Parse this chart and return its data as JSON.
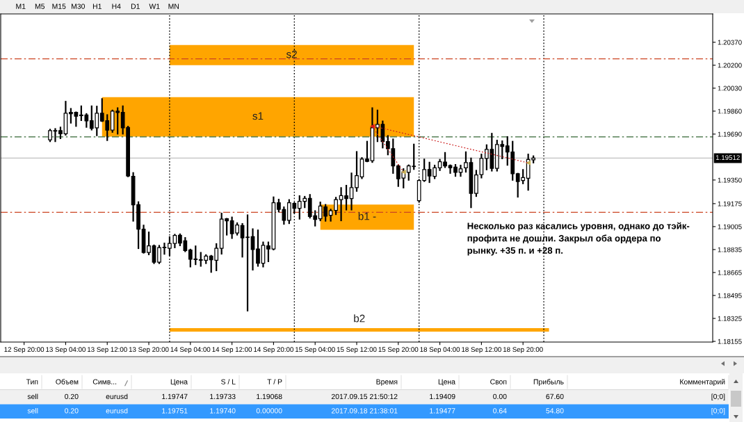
{
  "chart_data": [
    {
      "type": "other",
      "annotations": [
        "M1",
        "M5",
        "M15",
        "M30",
        "H1",
        "H4",
        "D1",
        "W1",
        "MN"
      ]
    },
    {
      "type": "candlestick",
      "categories": [
        null,
        null,
        null,
        null,
        "12 Sep 20:00",
        null,
        null,
        null,
        null,
        null,
        null,
        null,
        "13 Sep 04:00",
        null,
        null,
        null,
        null,
        null,
        null,
        null,
        "13 Sep 12:00",
        null,
        null,
        null,
        null,
        null,
        null,
        null,
        "13 Sep 20:00",
        null,
        null,
        null,
        null,
        null,
        null,
        null,
        "14 Sep 04:00",
        null,
        null,
        null,
        null,
        null,
        null,
        null,
        "14 Sep 12:00",
        null,
        null,
        null,
        null,
        null,
        null,
        null,
        "14 Sep 20:00",
        null,
        null,
        null,
        null,
        null,
        null,
        null,
        "15 Sep 04:00",
        null,
        null,
        null,
        null,
        null,
        null,
        null,
        "15 Sep 12:00",
        null,
        null,
        null,
        null,
        null,
        null,
        null,
        "15 Sep 20:00",
        null,
        null,
        null,
        null,
        null,
        null,
        null,
        "18 Sep 04:00",
        null,
        null,
        null,
        null,
        null,
        null,
        null,
        "18 Sep 12:00",
        null,
        null,
        null,
        null,
        null,
        null,
        null,
        "18 Sep 20:00",
        null,
        null,
        null,
        null,
        null,
        null,
        null,
        null,
        null,
        null,
        null,
        null,
        null,
        null,
        null,
        null,
        null,
        null,
        null,
        null,
        null,
        null,
        null,
        null,
        null,
        null,
        null,
        null,
        null,
        null,
        null,
        null,
        null,
        null,
        null,
        null
      ],
      "ohlc": [
        null,
        null,
        null,
        null,
        null,
        null,
        null,
        null,
        null,
        [
          1.19647,
          1.19723,
          1.19637,
          1.19716
        ],
        [
          1.19712,
          1.19728,
          1.19637,
          1.19716
        ],
        [
          1.19716,
          1.19739,
          1.19659,
          1.19693
        ],
        [
          1.19692,
          1.1993,
          1.19685,
          1.19844
        ],
        [
          1.19851,
          1.19877,
          1.19774,
          1.19841
        ],
        [
          1.19851,
          1.19851,
          1.1975,
          1.19822
        ],
        [
          1.19831,
          1.19896,
          1.19793,
          1.19827
        ],
        [
          1.19832,
          1.19839,
          1.19743,
          1.19788
        ],
        [
          1.19789,
          1.19896,
          1.19723,
          1.19733
        ],
        [
          1.19736,
          1.19894,
          1.19681,
          1.19844
        ],
        [
          1.19844,
          1.1995,
          1.19786,
          1.19786
        ],
        [
          1.19789,
          1.19831,
          1.19645,
          1.19719
        ],
        [
          1.19719,
          1.19865,
          1.19706,
          1.1986
        ],
        [
          1.1986,
          1.19882,
          1.19693,
          1.19849
        ],
        [
          1.19851,
          1.19896,
          1.19693,
          1.19736
        ],
        [
          1.19739,
          1.19745,
          1.19377,
          1.1938
        ],
        [
          1.19377,
          1.19402,
          1.19048,
          1.19166
        ],
        [
          1.19167,
          1.19186,
          1.18845,
          1.18986
        ],
        [
          1.18986,
          1.19013,
          1.18811,
          1.18814
        ],
        [
          1.18814,
          1.18962,
          1.18799,
          1.18863
        ],
        [
          1.18863,
          1.18866,
          1.18734,
          1.18742
        ],
        [
          1.18742,
          1.18863,
          1.18734,
          1.18849
        ],
        [
          1.18849,
          1.1888,
          1.18803,
          1.18852
        ],
        [
          1.18845,
          1.18927,
          1.18794,
          1.1888
        ],
        [
          1.1888,
          1.18945,
          1.18851,
          1.1894
        ],
        [
          1.18941,
          1.18948,
          1.18866,
          1.18883
        ],
        [
          1.189,
          1.18921,
          1.18822,
          1.18828
        ],
        [
          1.18831,
          1.18835,
          1.18709,
          1.18763
        ],
        [
          1.18765,
          1.18859,
          1.18726,
          1.18761
        ],
        [
          1.1876,
          1.18811,
          1.18714,
          1.18756
        ],
        [
          1.18755,
          1.18794,
          1.18734,
          1.18786
        ],
        [
          1.18786,
          1.18789,
          1.18669,
          1.1876
        ],
        [
          1.18755,
          1.18876,
          1.18681,
          1.18845
        ],
        [
          1.18845,
          1.19102,
          1.18804,
          1.1906
        ],
        [
          1.19063,
          1.19063,
          1.18945,
          1.19048
        ],
        [
          1.19048,
          1.19073,
          1.1892,
          1.18953
        ],
        [
          1.18957,
          1.1903,
          1.18945,
          1.19017
        ],
        [
          1.19013,
          1.19025,
          1.18782,
          1.18922
        ],
        [
          1.18927,
          1.19089,
          1.18383,
          1.18925
        ],
        [
          1.18931,
          1.18986,
          1.18686,
          1.18835
        ],
        [
          1.18839,
          1.18977,
          1.18714,
          1.18734
        ],
        [
          1.18734,
          1.18888,
          1.18709,
          1.18866
        ],
        [
          1.18863,
          1.18888,
          1.18748,
          1.18839
        ],
        [
          1.18839,
          1.19222,
          1.18835,
          1.19181
        ],
        [
          1.19181,
          1.19205,
          1.19116,
          1.19133
        ],
        [
          1.19131,
          1.19148,
          1.19025,
          1.19051
        ],
        [
          1.19051,
          1.19202,
          1.1903,
          1.19181
        ],
        [
          1.19176,
          1.19179,
          1.19107,
          1.1914
        ],
        [
          1.1914,
          1.19231,
          1.19063,
          1.19192
        ],
        [
          1.19192,
          1.19226,
          1.19148,
          1.19214
        ],
        [
          1.19214,
          1.1924,
          1.19071,
          1.1908
        ],
        [
          1.19085,
          1.1912,
          1.19012,
          1.19058
        ],
        [
          1.19063,
          1.19184,
          1.19051,
          1.19157
        ],
        [
          1.19151,
          1.19166,
          1.19048,
          1.19082
        ],
        [
          1.19089,
          1.19131,
          1.19048,
          1.19123
        ],
        [
          1.19125,
          1.19219,
          1.19097,
          1.19205
        ],
        [
          1.19205,
          1.19291,
          1.19051,
          1.19234
        ],
        [
          1.19233,
          1.19308,
          1.19131,
          1.19212
        ],
        [
          1.19212,
          1.19399,
          1.19131,
          1.19294
        ],
        [
          1.19294,
          1.19558,
          1.19269,
          1.19383
        ],
        [
          1.19373,
          1.19513,
          1.19363,
          1.19505
        ],
        [
          1.19505,
          1.19634,
          1.19488,
          1.19488
        ],
        [
          1.19493,
          1.19882,
          1.19483,
          1.19736
        ],
        [
          1.19736,
          1.19865,
          1.19637,
          1.19762
        ],
        [
          1.19762,
          1.19784,
          1.1959,
          1.19634
        ],
        [
          1.19634,
          1.19676,
          1.19539,
          1.19582
        ],
        [
          1.19582,
          1.19651,
          1.19402,
          1.19454
        ],
        [
          1.19454,
          1.19459,
          1.19305,
          1.19359
        ],
        [
          1.19364,
          1.19431,
          1.19294,
          1.19411
        ],
        [
          1.19407,
          1.19459,
          1.19351,
          1.19454
        ],
        [
          1.19452,
          1.19613,
          1.19431,
          1.1945
        ],
        [
          1.19197,
          1.19351,
          1.19188,
          1.19346
        ],
        [
          1.19346,
          1.19502,
          1.19342,
          1.19428
        ],
        [
          1.19428,
          1.19479,
          1.19334,
          1.1938
        ],
        [
          1.19377,
          1.19457,
          1.19363,
          1.1944
        ],
        [
          1.1944,
          1.195,
          1.19423,
          1.19485
        ],
        [
          1.19483,
          1.19551,
          1.19445,
          1.19454
        ],
        [
          1.19457,
          1.19459,
          1.19402,
          1.1944
        ],
        [
          1.19445,
          1.19462,
          1.1938,
          1.19407
        ],
        [
          1.19407,
          1.19457,
          1.1938,
          1.19433
        ],
        [
          1.1944,
          1.19556,
          1.19411,
          1.19479
        ],
        [
          1.19479,
          1.1951,
          1.19148,
          1.19251
        ],
        [
          1.19251,
          1.19419,
          1.19231,
          1.19388
        ],
        [
          1.1939,
          1.19539,
          1.19368,
          1.1951
        ],
        [
          1.1951,
          1.19608,
          1.19428,
          1.19577
        ],
        [
          1.19577,
          1.19693,
          1.19419,
          1.19436
        ],
        [
          1.19436,
          1.19642,
          1.19419,
          1.19613
        ],
        [
          1.19613,
          1.19637,
          1.1951,
          1.19599
        ],
        [
          1.19603,
          1.19668,
          1.19462,
          1.19557
        ],
        [
          1.19557,
          1.19634,
          1.19351,
          1.19397
        ],
        [
          1.19397,
          1.19397,
          1.19226,
          1.19339
        ],
        [
          1.19346,
          1.19425,
          1.19325,
          1.19368
        ],
        [
          1.19363,
          1.19539,
          1.19277,
          1.19502
        ],
        [
          1.195,
          1.19526,
          1.19479,
          1.19512
        ],
        null,
        null,
        null,
        null,
        null,
        null,
        null,
        null,
        null,
        null,
        null,
        null,
        null,
        null,
        null,
        null,
        null,
        null,
        null,
        null,
        null,
        null,
        null,
        null,
        null,
        null,
        null,
        null,
        null,
        null,
        null,
        null,
        null,
        null
      ],
      "ylim": [
        1.1815,
        1.2058
      ],
      "yticks": [
        {
          "value": 1.2037,
          "label": "1.20370"
        },
        {
          "value": 1.202,
          "label": "1.20200"
        },
        {
          "value": 1.2003,
          "label": "1.20030"
        },
        {
          "value": 1.1986,
          "label": "1.19860"
        },
        {
          "value": 1.1969,
          "label": "1.19690"
        },
        {
          "value": 1.1935,
          "label": "1.19350"
        },
        1.19175,
        1.19005,
        1.18835,
        1.18665,
        1.18495,
        1.18325,
        1.18155
      ],
      "series": [
        {
          "type": "line",
          "color": "#cc2020",
          "line_style": "dotted",
          "values": [
            null,
            null,
            null,
            null,
            null,
            null,
            null,
            null,
            null,
            null,
            null,
            null,
            null,
            null,
            null,
            null,
            null,
            null,
            null,
            null,
            null,
            null,
            null,
            null,
            null,
            null,
            null,
            null,
            null,
            null,
            null,
            null,
            null,
            null,
            null,
            null,
            null,
            null,
            null,
            null,
            null,
            null,
            null,
            null,
            null,
            null,
            null,
            null,
            null,
            null,
            null,
            null,
            null,
            null,
            null,
            null,
            null,
            null,
            null,
            null,
            null,
            null,
            null,
            null,
            null,
            null,
            null,
            null,
            null,
            null,
            null,
            1.19747,
            null,
            null,
            null,
            null,
            null,
            1.19409,
            null,
            null,
            null,
            null,
            null,
            null,
            null,
            null,
            null,
            null,
            null,
            null,
            null,
            null,
            null,
            null,
            null,
            null,
            null,
            null,
            null,
            null,
            null,
            null,
            null,
            null,
            null,
            null,
            null,
            null,
            null,
            null,
            null,
            null,
            null,
            null,
            null,
            null,
            null,
            null,
            null,
            null,
            null,
            null,
            null,
            null,
            null,
            null,
            null,
            null,
            null,
            null,
            null,
            null,
            null,
            null,
            null,
            null,
            null
          ]
        },
        {
          "type": "line",
          "color": "#cc2020",
          "line_style": "dotted",
          "values": [
            null,
            null,
            null,
            null,
            null,
            null,
            null,
            null,
            null,
            null,
            null,
            null,
            null,
            null,
            null,
            null,
            null,
            null,
            null,
            null,
            null,
            null,
            null,
            null,
            null,
            null,
            null,
            null,
            null,
            null,
            null,
            null,
            null,
            null,
            null,
            null,
            null,
            null,
            null,
            null,
            null,
            null,
            null,
            null,
            null,
            null,
            null,
            null,
            null,
            null,
            null,
            null,
            null,
            null,
            null,
            null,
            null,
            null,
            null,
            null,
            null,
            null,
            null,
            null,
            null,
            null,
            null,
            null,
            null,
            null,
            null,
            1.19751,
            null,
            null,
            null,
            null,
            null,
            null,
            null,
            null,
            null,
            null,
            null,
            null,
            null,
            null,
            null,
            null,
            null,
            null,
            null,
            null,
            null,
            null,
            null,
            null,
            null,
            null,
            null,
            null,
            null,
            1.19477,
            null,
            null,
            null,
            null,
            null,
            null,
            null,
            null,
            null,
            null,
            null,
            null,
            null,
            null,
            null,
            null,
            null,
            null,
            null,
            null,
            null,
            null,
            null,
            null,
            null,
            null,
            null,
            null,
            null,
            null,
            null,
            null,
            null,
            null,
            null
          ]
        },
        {
          "type": "scatter",
          "color": "#e01818",
          "marker": "triangle",
          "values": [
            null,
            null,
            null,
            null,
            null,
            null,
            null,
            null,
            null,
            null,
            null,
            null,
            null,
            null,
            null,
            null,
            null,
            null,
            null,
            null,
            null,
            null,
            null,
            null,
            null,
            null,
            null,
            null,
            null,
            null,
            null,
            null,
            null,
            null,
            null,
            null,
            null,
            null,
            null,
            null,
            null,
            null,
            null,
            null,
            null,
            null,
            null,
            null,
            null,
            null,
            null,
            null,
            null,
            null,
            null,
            null,
            null,
            null,
            null,
            null,
            null,
            null,
            null,
            null,
            null,
            null,
            null,
            null,
            null,
            null,
            null,
            1.19747,
            null,
            null,
            null,
            null,
            null,
            null,
            null,
            null,
            null,
            null,
            null,
            null,
            null,
            null,
            null,
            null,
            null,
            null,
            null,
            null,
            null,
            null,
            null,
            null,
            null,
            null,
            null,
            null,
            null,
            null,
            null,
            null,
            null,
            null,
            null,
            null,
            null,
            null,
            null,
            null,
            null,
            null,
            null,
            null,
            null,
            null,
            null,
            null,
            null,
            null,
            null,
            null,
            null,
            null,
            null,
            null,
            null,
            null,
            null,
            null,
            null,
            null,
            null,
            null,
            null
          ]
        },
        {
          "type": "scatter",
          "color": "#c8b45a",
          "marker": "triangle",
          "values": [
            null,
            null,
            null,
            null,
            null,
            null,
            null,
            null,
            null,
            null,
            null,
            null,
            null,
            null,
            null,
            null,
            null,
            null,
            null,
            null,
            null,
            null,
            null,
            null,
            null,
            null,
            null,
            null,
            null,
            null,
            null,
            null,
            null,
            null,
            null,
            null,
            null,
            null,
            null,
            null,
            null,
            null,
            null,
            null,
            null,
            null,
            null,
            null,
            null,
            null,
            null,
            null,
            null,
            null,
            null,
            null,
            null,
            null,
            null,
            null,
            null,
            null,
            null,
            null,
            null,
            null,
            null,
            null,
            null,
            null,
            null,
            null,
            null,
            null,
            null,
            null,
            null,
            1.19409,
            null,
            null,
            null,
            null,
            null,
            null,
            null,
            null,
            null,
            null,
            null,
            null,
            null,
            null,
            null,
            null,
            null,
            null,
            null,
            null,
            null,
            null,
            null,
            1.19477,
            null,
            null,
            null,
            null,
            null,
            null,
            null,
            null,
            null,
            null,
            null,
            null,
            null,
            null,
            null,
            null,
            null,
            null,
            null,
            null,
            null,
            null,
            null,
            null,
            null,
            null,
            null,
            null,
            null,
            null,
            null,
            null,
            null,
            null,
            null
          ]
        }
      ],
      "bands": [
        {
          "axis": "y",
          "from": 1.202,
          "to": 1.20349,
          "label": "s2",
          "color": "#ffa500"
        },
        {
          "axis": "y",
          "from": 1.19671,
          "to": 1.19964,
          "label": "s1",
          "color": "#ffa500"
        },
        {
          "axis": "y",
          "from": 1.18982,
          "to": 1.19168,
          "label": "b1 -",
          "color": "#ffa500"
        },
        {
          "axis": "y",
          "from": 1.18227,
          "to": 1.18253,
          "label": "b2",
          "color": "#ffa500"
        }
      ],
      "ref_lines": [
        {
          "axis": "y",
          "value": 1.20247,
          "color": "#cc4422",
          "line_style": "dashdot"
        },
        {
          "axis": "y",
          "value": 1.1967,
          "color": "#336633",
          "line_style": "dashdot"
        },
        {
          "axis": "y",
          "value": 1.19111,
          "color": "#cc4422",
          "line_style": "dashdot"
        },
        {
          "axis": "y",
          "value": 1.19512,
          "label": "1.19512",
          "color": "#c0c0c0",
          "line_style": "solid"
        }
      ],
      "annotations": [
        "Несколько раз касались уровня, однако до тэйк-\nпрофита не дошли. Закрыл оба ордера по\nрынку. +35 п. и +28 п."
      ]
    },
    {
      "type": "other",
      "categories": [
        "Тип",
        "Объем",
        "Симв...",
        "Цена",
        "S / L",
        "T / P",
        "Время",
        "Цена",
        "Своп",
        "Прибыль",
        "Комментарий"
      ],
      "annotations": [
        "sell",
        "0.20",
        "eurusd",
        "1.19747",
        "1.19733",
        "1.19068",
        "2017.09.15 21:50:12",
        "1.19409",
        "0.00",
        "67.60",
        "[0;0]",
        "sell",
        "0.20",
        "eurusd",
        "1.19751",
        "1.19740",
        "0.00000",
        "2017.09.18 21:38:01",
        "1.19477",
        "0.64",
        "54.80",
        "[0;0]"
      ]
    }
  ]
}
